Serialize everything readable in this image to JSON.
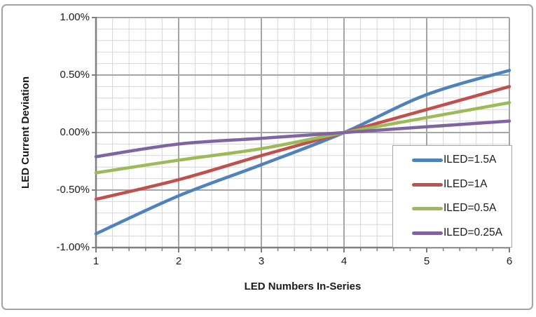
{
  "figure": {
    "background": "#ffffff",
    "border_color": "#a3a3a3"
  },
  "chart_data": {
    "type": "line",
    "title": "",
    "xlabel": "LED Numbers In-Series",
    "ylabel": "LED Current Deviation",
    "x": [
      1,
      2,
      3,
      4,
      5,
      6
    ],
    "xlim": [
      1,
      6
    ],
    "ylim_percent": [
      -1.0,
      1.0
    ],
    "x_tick_labels": [
      "1",
      "2",
      "3",
      "4",
      "5",
      "6"
    ],
    "y_tick_labels": [
      "1.00%",
      "0.50%",
      "0.00%",
      "-0.50%",
      "-1.00%"
    ],
    "y_tick_values": [
      1.0,
      0.5,
      0.0,
      -0.5,
      -1.0
    ],
    "values_unit": "percent",
    "grid": {
      "major": true,
      "minor": true,
      "x_minor_step": 0.2,
      "y_minor_step": 0.1,
      "major_color": "#a5a5a5",
      "minor_color": "#d6d6d6",
      "axis_color": "#7f7f7f"
    },
    "legend_position": "inside-right",
    "series": [
      {
        "name": "ILED=1.5A",
        "color": "#4f81bd",
        "values": [
          -0.88,
          -0.55,
          -0.28,
          0.0,
          0.33,
          0.54
        ]
      },
      {
        "name": "ILED=1A",
        "color": "#c0504d",
        "values": [
          -0.58,
          -0.41,
          -0.2,
          0.0,
          0.2,
          0.4
        ]
      },
      {
        "name": "ILED=0.5A",
        "color": "#9bbb59",
        "values": [
          -0.35,
          -0.24,
          -0.14,
          0.0,
          0.13,
          0.26
        ]
      },
      {
        "name": "ILED=0.25A",
        "color": "#8064a2",
        "values": [
          -0.21,
          -0.1,
          -0.05,
          0.0,
          0.05,
          0.1
        ]
      }
    ]
  }
}
